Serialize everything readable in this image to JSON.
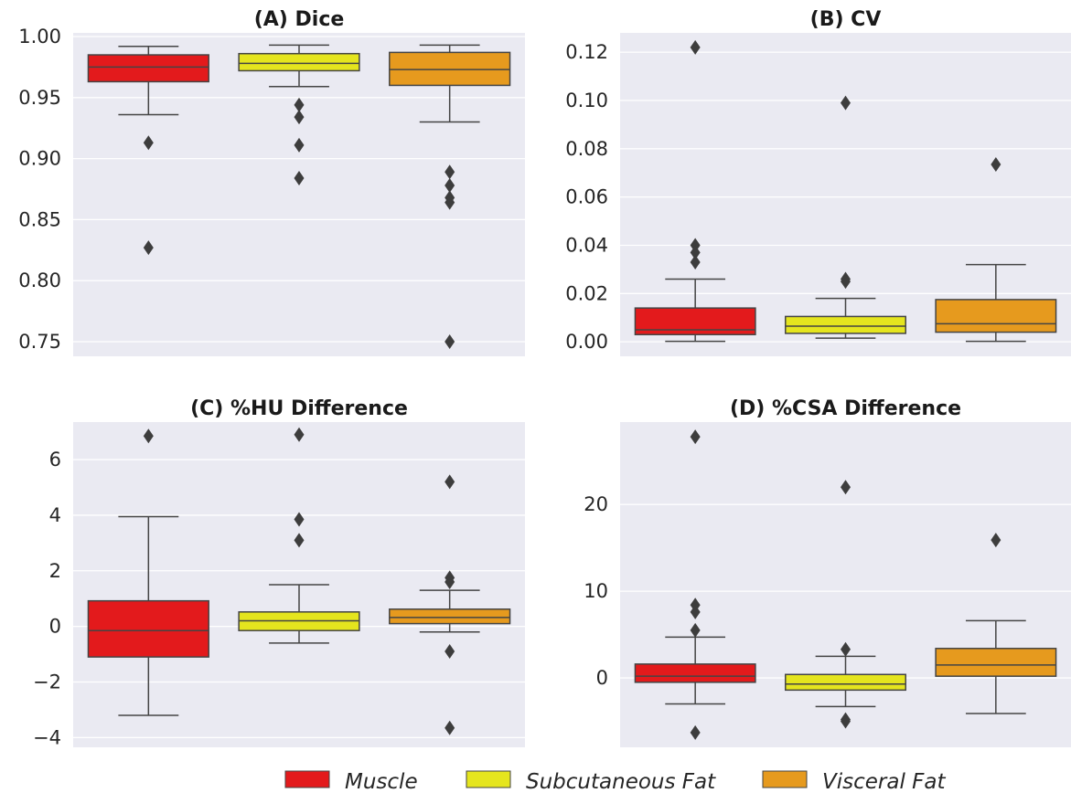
{
  "legend": {
    "placement": "bottom-center",
    "items": [
      {
        "label": "Muscle",
        "color": "#e31a1c"
      },
      {
        "label": "Subcutaneous Fat",
        "color": "#e5e51e"
      },
      {
        "label": "Visceral Fat",
        "color": "#e69a1e"
      }
    ]
  },
  "chart_data": [
    {
      "type": "box",
      "title": "(A) Dice",
      "ylim": [
        0.738,
        1.003
      ],
      "yticks": [
        0.75,
        0.8,
        0.85,
        0.9,
        0.95,
        1.0
      ],
      "ytick_labels": [
        "0.75",
        "0.80",
        "0.85",
        "0.90",
        "0.95",
        "1.00"
      ],
      "grid": true,
      "series": [
        {
          "name": "Muscle",
          "color": "#e31a1c",
          "whisker_low": 0.936,
          "q1": 0.963,
          "median": 0.975,
          "q3": 0.985,
          "whisker_high": 0.992,
          "outliers": [
            0.913,
            0.827
          ]
        },
        {
          "name": "Subcutaneous Fat",
          "color": "#e5e51e",
          "whisker_low": 0.959,
          "q1": 0.972,
          "median": 0.978,
          "q3": 0.986,
          "whisker_high": 0.993,
          "outliers": [
            0.944,
            0.934,
            0.911,
            0.884
          ]
        },
        {
          "name": "Visceral Fat",
          "color": "#e69a1e",
          "whisker_low": 0.93,
          "q1": 0.96,
          "median": 0.973,
          "q3": 0.987,
          "whisker_high": 0.993,
          "outliers": [
            0.889,
            0.878,
            0.868,
            0.864,
            0.75
          ]
        }
      ]
    },
    {
      "type": "box",
      "title": "(B) CV",
      "ylim": [
        -0.006,
        0.128
      ],
      "yticks": [
        0.0,
        0.02,
        0.04,
        0.06,
        0.08,
        0.1,
        0.12
      ],
      "ytick_labels": [
        "0.00",
        "0.02",
        "0.04",
        "0.06",
        "0.08",
        "0.10",
        "0.12"
      ],
      "grid": true,
      "series": [
        {
          "name": "Muscle",
          "color": "#e31a1c",
          "whisker_low": 0.0002,
          "q1": 0.003,
          "median": 0.005,
          "q3": 0.014,
          "whisker_high": 0.026,
          "outliers": [
            0.04,
            0.037,
            0.033,
            0.122
          ]
        },
        {
          "name": "Subcutaneous Fat",
          "color": "#e5e51e",
          "whisker_low": 0.0015,
          "q1": 0.0035,
          "median": 0.0065,
          "q3": 0.0105,
          "whisker_high": 0.018,
          "outliers": [
            0.026,
            0.025,
            0.099
          ]
        },
        {
          "name": "Visceral Fat",
          "color": "#e69a1e",
          "whisker_low": 0.0002,
          "q1": 0.004,
          "median": 0.0075,
          "q3": 0.0175,
          "whisker_high": 0.032,
          "outliers": [
            0.0735
          ]
        }
      ]
    },
    {
      "type": "box",
      "title": "(C) %HU Difference",
      "ylim": [
        -4.35,
        7.35
      ],
      "yticks": [
        -4,
        -2,
        0,
        2,
        4,
        6
      ],
      "ytick_labels": [
        "−4",
        "−2",
        "0",
        "2",
        "4",
        "6"
      ],
      "grid": true,
      "series": [
        {
          "name": "Muscle",
          "color": "#e31a1c",
          "whisker_low": -3.2,
          "q1": -1.1,
          "median": -0.15,
          "q3": 0.92,
          "whisker_high": 3.95,
          "outliers": [
            6.85
          ]
        },
        {
          "name": "Subcutaneous Fat",
          "color": "#e5e51e",
          "whisker_low": -0.6,
          "q1": -0.15,
          "median": 0.2,
          "q3": 0.52,
          "whisker_high": 1.5,
          "outliers": [
            3.85,
            3.1,
            6.9
          ]
        },
        {
          "name": "Visceral Fat",
          "color": "#e69a1e",
          "whisker_low": -0.2,
          "q1": 0.1,
          "median": 0.32,
          "q3": 0.62,
          "whisker_high": 1.3,
          "outliers": [
            1.75,
            1.6,
            -0.9,
            -3.65,
            5.2
          ]
        }
      ]
    },
    {
      "type": "box",
      "title": "(D) %CSA Difference",
      "ylim": [
        -8,
        29.5
      ],
      "yticks": [
        0,
        10,
        20
      ],
      "ytick_labels": [
        "0",
        "10",
        "20"
      ],
      "grid": true,
      "series": [
        {
          "name": "Muscle",
          "color": "#e31a1c",
          "whisker_low": -3.0,
          "q1": -0.5,
          "median": 0.2,
          "q3": 1.6,
          "whisker_high": 4.7,
          "outliers": [
            5.5,
            7.6,
            8.4,
            -6.3,
            27.8
          ]
        },
        {
          "name": "Subcutaneous Fat",
          "color": "#e5e51e",
          "whisker_low": -3.3,
          "q1": -1.4,
          "median": -0.7,
          "q3": 0.4,
          "whisker_high": 2.5,
          "outliers": [
            3.3,
            -4.8,
            -5.0,
            22.0
          ]
        },
        {
          "name": "Visceral Fat",
          "color": "#e69a1e",
          "whisker_low": -4.1,
          "q1": 0.2,
          "median": 1.5,
          "q3": 3.4,
          "whisker_high": 6.6,
          "outliers": [
            15.9
          ]
        }
      ]
    }
  ]
}
